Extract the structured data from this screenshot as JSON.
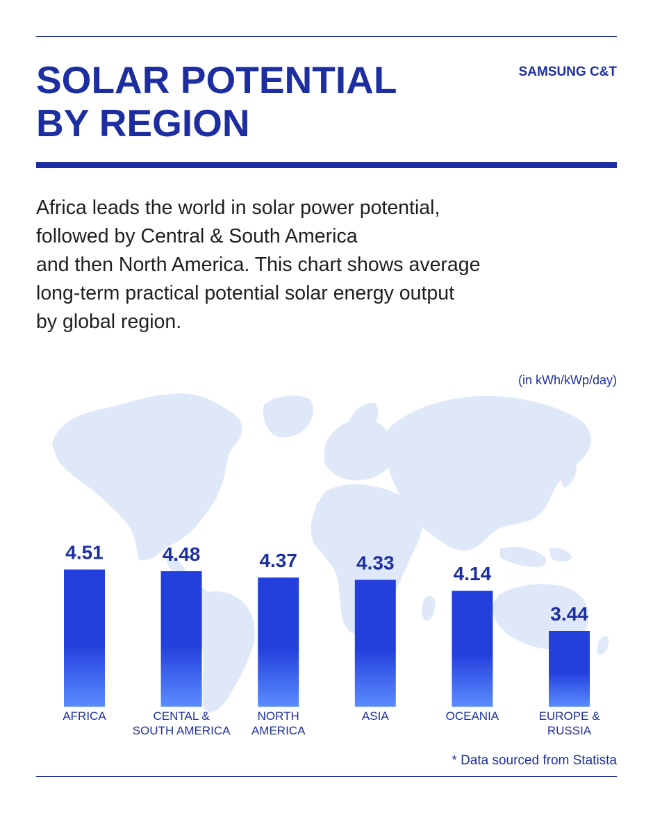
{
  "header": {
    "title_lines": [
      "SOLAR POTENTIAL",
      "BY REGION"
    ],
    "brand": "SAMSUNG C&T"
  },
  "description_lines": [
    "Africa leads the world in solar power potential,",
    "followed by Central & South America",
    "and then North America. This chart shows average",
    "long-term practical potential solar energy output",
    "by global region."
  ],
  "footnote": "* Data sourced from Statista",
  "colors": {
    "accent": "#1d2fa0",
    "bar_top": "#2440dc",
    "bar_bottom": "#5a8cff",
    "map": "#dfe8f8"
  },
  "chart_data": {
    "type": "bar",
    "title": "",
    "unit_label": "(in kWh/kWp/day)",
    "categories": [
      [
        "AFRICA"
      ],
      [
        "CENTAL &",
        "SOUTH AMERICA"
      ],
      [
        "NORTH",
        "AMERICA"
      ],
      [
        "ASIA"
      ],
      [
        "OCEANIA"
      ],
      [
        "EUROPE &",
        "RUSSIA"
      ]
    ],
    "values": [
      4.51,
      4.48,
      4.37,
      4.33,
      4.14,
      3.44
    ],
    "value_labels": [
      "4.51",
      "4.48",
      "4.37",
      "4.33",
      "4.14",
      "3.44"
    ],
    "grid": false,
    "background": "world map"
  }
}
